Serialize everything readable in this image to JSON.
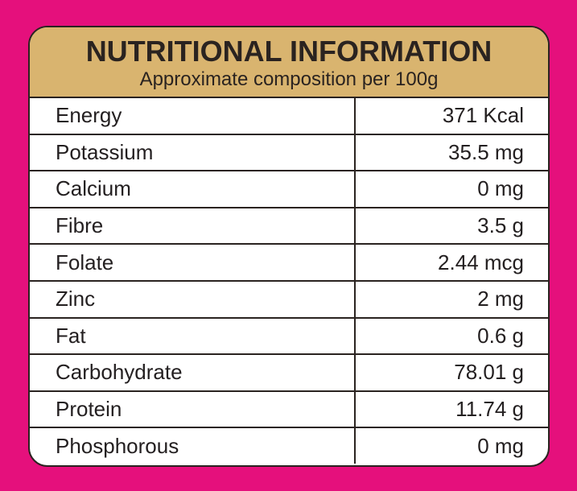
{
  "header": {
    "title": "NUTRITIONAL INFORMATION",
    "subtitle": "Approximate composition per 100g"
  },
  "table": {
    "rows": [
      [
        "Energy",
        "371 Kcal"
      ],
      [
        "Potassium",
        "35.5 mg"
      ],
      [
        "Calcium",
        "0 mg"
      ],
      [
        "Fibre",
        "3.5 g"
      ],
      [
        "Folate",
        "2.44 mcg"
      ],
      [
        "Zinc",
        "2 mg"
      ],
      [
        "Fat",
        "0.6 g"
      ],
      [
        "Carbohydrate",
        "78.01 g"
      ],
      [
        "Protein",
        "11.74 g"
      ],
      [
        "Phosphorous",
        "0 mg"
      ]
    ]
  }
}
